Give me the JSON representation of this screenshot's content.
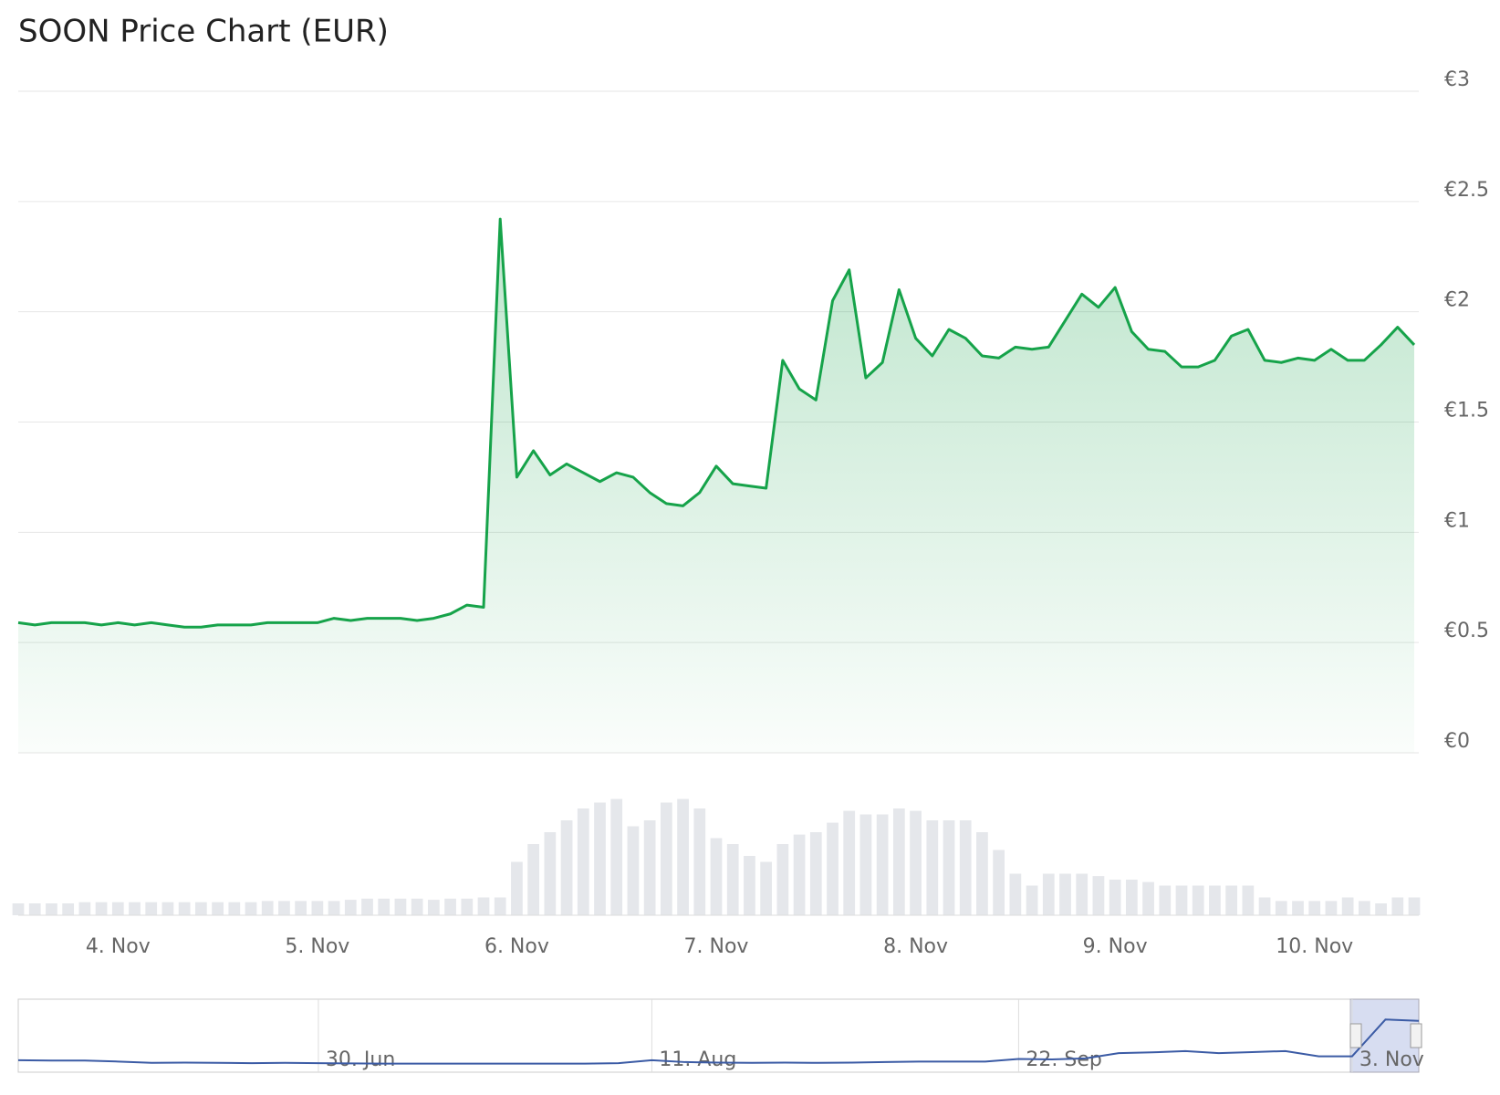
{
  "chart_data": [
    {
      "type": "line",
      "title": "SOON Price Chart (EUR)",
      "color": "#16a34a",
      "categories": [
        null,
        null,
        null,
        null,
        null,
        null,
        "4. Nov",
        null,
        null,
        null,
        null,
        null,
        null,
        null,
        null,
        null,
        null,
        null,
        "5. Nov",
        null,
        null,
        null,
        null,
        null,
        null,
        null,
        null,
        null,
        null,
        null,
        "6. Nov",
        null,
        null,
        null,
        null,
        null,
        null,
        null,
        null,
        null,
        null,
        null,
        "7. Nov",
        null,
        null,
        null,
        null,
        null,
        null,
        null,
        null,
        null,
        null,
        null,
        "8. Nov",
        null,
        null,
        null,
        null,
        null,
        null,
        null,
        null,
        null,
        null,
        null,
        "9. Nov",
        null,
        null,
        null,
        null,
        null,
        null,
        null,
        null,
        null,
        null,
        null,
        "10. Nov",
        null,
        null,
        null,
        null,
        null,
        null
      ],
      "values": [
        0.59,
        0.58,
        0.59,
        0.59,
        0.59,
        0.58,
        0.59,
        0.58,
        0.59,
        0.58,
        0.57,
        0.57,
        0.58,
        0.58,
        0.58,
        0.59,
        0.59,
        0.59,
        0.59,
        0.61,
        0.6,
        0.61,
        0.61,
        0.61,
        0.6,
        0.61,
        0.63,
        0.67,
        0.66,
        2.42,
        1.25,
        1.37,
        1.26,
        1.31,
        1.27,
        1.23,
        1.27,
        1.25,
        1.18,
        1.13,
        1.12,
        1.18,
        1.3,
        1.22,
        1.21,
        1.2,
        1.78,
        1.65,
        1.6,
        2.05,
        2.19,
        1.7,
        1.77,
        2.1,
        1.88,
        1.8,
        1.92,
        1.88,
        1.8,
        1.79,
        1.84,
        1.83,
        1.84,
        1.96,
        2.08,
        2.02,
        2.11,
        1.91,
        1.83,
        1.82,
        1.75,
        1.75,
        1.78,
        1.89,
        1.92,
        1.78,
        1.77,
        1.79,
        1.78,
        1.83,
        1.78,
        1.78,
        1.85,
        1.93,
        1.85
      ],
      "ylim": [
        0,
        3
      ],
      "yticks": [
        {
          "value": 0,
          "label": "€0"
        },
        {
          "value": 0.5,
          "label": "€0.5"
        },
        {
          "value": 1,
          "label": "€1"
        },
        {
          "value": 1.5,
          "label": "€1.5"
        },
        {
          "value": 2,
          "label": "€2"
        },
        {
          "value": 2.5,
          "label": "€2.5"
        },
        {
          "value": 3,
          "label": "€3"
        }
      ],
      "grid": true
    },
    {
      "type": "bar",
      "color": "#e5e7eb",
      "values": [
        10,
        10,
        10,
        10,
        11,
        11,
        11,
        11,
        11,
        11,
        11,
        11,
        11,
        11,
        11,
        12,
        12,
        12,
        12,
        12,
        13,
        14,
        14,
        14,
        14,
        13,
        14,
        14,
        15,
        15,
        45,
        60,
        70,
        80,
        90,
        95,
        98,
        75,
        80,
        95,
        98,
        90,
        65,
        60,
        50,
        45,
        60,
        68,
        70,
        78,
        88,
        85,
        85,
        90,
        88,
        80,
        80,
        80,
        70,
        55,
        35,
        25,
        35,
        35,
        35,
        33,
        30,
        30,
        28,
        25,
        25,
        25,
        25,
        25,
        25,
        15,
        12,
        12,
        12,
        12,
        15,
        12,
        10,
        15,
        15
      ],
      "ylim": [
        0,
        100
      ]
    },
    {
      "type": "line",
      "color": "#3b5ba5",
      "categories": [
        null,
        null,
        null,
        null,
        null,
        null,
        null,
        null,
        null,
        "30. Jun",
        null,
        null,
        null,
        null,
        null,
        null,
        null,
        null,
        null,
        "11. Aug",
        null,
        null,
        null,
        null,
        null,
        null,
        null,
        null,
        null,
        null,
        "22. Sep",
        null,
        null,
        null,
        null,
        null,
        null,
        null,
        null,
        null,
        "3. Nov",
        null,
        null
      ],
      "values": [
        0.35,
        0.34,
        0.34,
        0.3,
        0.25,
        0.26,
        0.25,
        0.24,
        0.25,
        0.24,
        0.23,
        0.22,
        0.22,
        0.22,
        0.22,
        0.22,
        0.22,
        0.22,
        0.24,
        0.35,
        0.28,
        0.26,
        0.25,
        0.26,
        0.25,
        0.26,
        0.28,
        0.3,
        0.3,
        0.3,
        0.4,
        0.38,
        0.42,
        0.62,
        0.65,
        0.7,
        0.62,
        0.66,
        0.7,
        0.5,
        0.5,
        1.9,
        1.85
      ],
      "ylim": [
        0,
        2.5
      ]
    }
  ]
}
